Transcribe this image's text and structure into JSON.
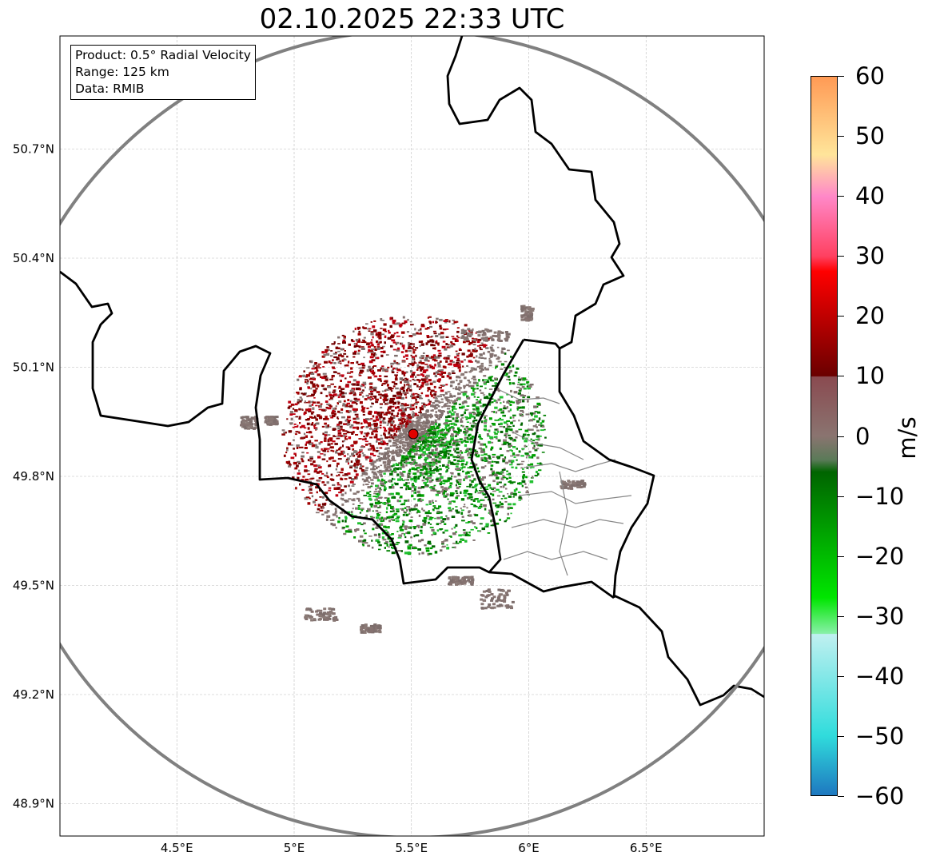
{
  "title": "02.10.2025 22:33 UTC",
  "info_box": {
    "product": "Product: 0.5° Radial Velocity",
    "range": "Range: 125 km",
    "data": "Data: RMIB"
  },
  "map": {
    "lon_ticks": [
      "4.5°E",
      "5°E",
      "5.5°E",
      "6°E",
      "6.5°E"
    ],
    "lon_values": [
      4.5,
      5.0,
      5.5,
      6.0,
      6.5
    ],
    "lat_ticks": [
      "50.7°N",
      "50.4°N",
      "50.1°N",
      "49.8°N",
      "49.5°N",
      "49.2°N",
      "48.9°N"
    ],
    "lat_values": [
      50.7,
      50.4,
      50.1,
      49.8,
      49.5,
      49.2,
      48.9
    ],
    "radar_site": {
      "lon": 5.505,
      "lat": 49.914
    },
    "range_km": 125
  },
  "colorbar": {
    "label": "m/s",
    "min": -60,
    "max": 60,
    "ticks": [
      "60",
      "50",
      "40",
      "30",
      "20",
      "10",
      "0",
      "−10",
      "−20",
      "−30",
      "−40",
      "−50",
      "−60"
    ],
    "tick_values": [
      60,
      50,
      40,
      30,
      20,
      10,
      0,
      -10,
      -20,
      -30,
      -40,
      -50,
      -60
    ],
    "colors": {
      "max": "#ff9a55",
      "high": "#ffe59a",
      "pink": "#ff88c8",
      "red": "#ff0000",
      "darkred": "#6a0000",
      "neutral": "#8a7470",
      "darkgreen": "#006400",
      "green": "#00e600",
      "lightgreen": "#88f0a8",
      "cyan": "#30dcdc",
      "min": "#1e78c0"
    }
  }
}
